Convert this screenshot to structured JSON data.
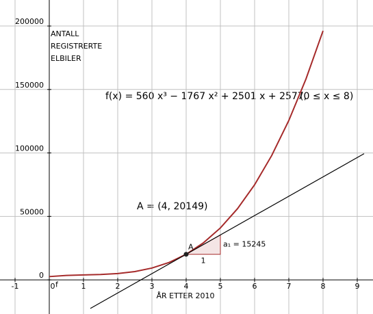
{
  "chart_data": {
    "type": "line",
    "x_label": "ÅR ETTER 2010",
    "y_label": [
      "ANTALL",
      "REGISTRERTE",
      "ELBILER"
    ],
    "formula": "f(x)  =  560 x³ − 1767 x² + 2501 x + 2577,",
    "domain_note": "(0 ≤ x ≤ 8)",
    "point_label": "A = (4, 20149)",
    "xlim": [
      -1.44,
      9.46
    ],
    "ylim": [
      -26900,
      220500
    ],
    "xticks": [
      -1,
      0,
      1,
      2,
      3,
      4,
      5,
      6,
      7,
      8,
      9
    ],
    "yticks": [
      0,
      50000,
      100000,
      150000,
      200000
    ],
    "grid": true,
    "series": [
      {
        "name": "f",
        "color": "#a52a2a",
        "x": [
          0,
          0.5,
          1,
          1.5,
          2,
          2.5,
          3,
          3.5,
          4,
          4.5,
          5,
          5.5,
          6,
          6.5,
          7,
          7.5,
          8
        ],
        "values": [
          2577,
          3455.75,
          3871,
          4242.75,
          4991,
          6535.75,
          9297,
          13694.75,
          20149,
          29078.75,
          40907,
          56050.75,
          74931,
          97967.75,
          125581,
          158190.75,
          196217
        ]
      },
      {
        "color": "#000000",
        "x": [
          1.2,
          9.2
        ],
        "values": [
          -22537,
          99423
        ]
      }
    ],
    "point": {
      "label": "A",
      "x": 4,
      "y": 20149
    },
    "slope": {
      "run": 1,
      "rise": 15245,
      "run_label": "1",
      "slope_label": "a₁ = 15245"
    }
  }
}
